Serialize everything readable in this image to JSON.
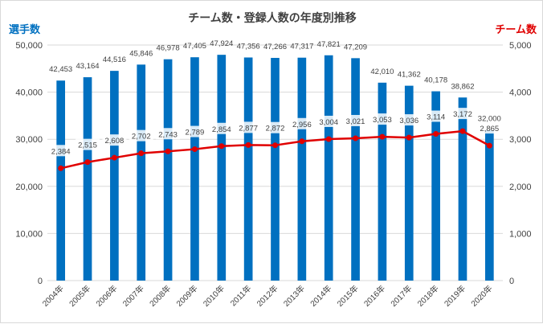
{
  "chart_data": {
    "type": "bar+line",
    "title": "チーム数・登録人数の年度別推移",
    "categories": [
      "2004年",
      "2005年",
      "2006年",
      "2007年",
      "2008年",
      "2009年",
      "2010年",
      "2011年",
      "2012年",
      "2013年",
      "2014年",
      "2015年",
      "2016年",
      "2017年",
      "2018年",
      "2019年",
      "2020年"
    ],
    "series": [
      {
        "name": "選手数",
        "type": "bar",
        "axis": "left",
        "values": [
          42453,
          43164,
          44516,
          45846,
          46978,
          47405,
          47924,
          47356,
          47266,
          47317,
          47821,
          47209,
          42010,
          41362,
          40178,
          38862,
          32000
        ],
        "labels": [
          "42,453",
          "43,164",
          "44,516",
          "45,846",
          "46,978",
          "47,405",
          "47,924",
          "47,356",
          "47,266",
          "47,317",
          "47,821",
          "47,209",
          "42,010",
          "41,362",
          "40,178",
          "38,862",
          "32,000"
        ]
      },
      {
        "name": "チーム数",
        "type": "line",
        "axis": "right",
        "values": [
          2384,
          2515,
          2608,
          2702,
          2743,
          2789,
          2854,
          2877,
          2872,
          2956,
          3004,
          3021,
          3053,
          3036,
          3114,
          3172,
          2865
        ],
        "labels": [
          "2,384",
          "2,515",
          "2,608",
          "2,702",
          "2,743",
          "2,789",
          "2,854",
          "2,877",
          "2,872",
          "2,956",
          "3,004",
          "3,021",
          "3,053",
          "3,036",
          "3,114",
          "3,172",
          "2,865"
        ]
      }
    ],
    "left_axis": {
      "label": "選手数",
      "ylim": [
        0,
        50000
      ],
      "ticks": [
        "0",
        "10,000",
        "20,000",
        "30,000",
        "40,000",
        "50,000"
      ]
    },
    "right_axis": {
      "label": "チーム数",
      "ylim": [
        0,
        5000
      ],
      "ticks": [
        "0",
        "1,000",
        "2,000",
        "3,000",
        "4,000",
        "5,000"
      ]
    },
    "grid": true,
    "legend": "none",
    "colors": {
      "bars": "#0070c0",
      "line": "#e00000",
      "grid": "#d9d9d9",
      "text": "#404040",
      "left_axis_label": "#0070c0",
      "right_axis_label": "#e00000"
    }
  }
}
